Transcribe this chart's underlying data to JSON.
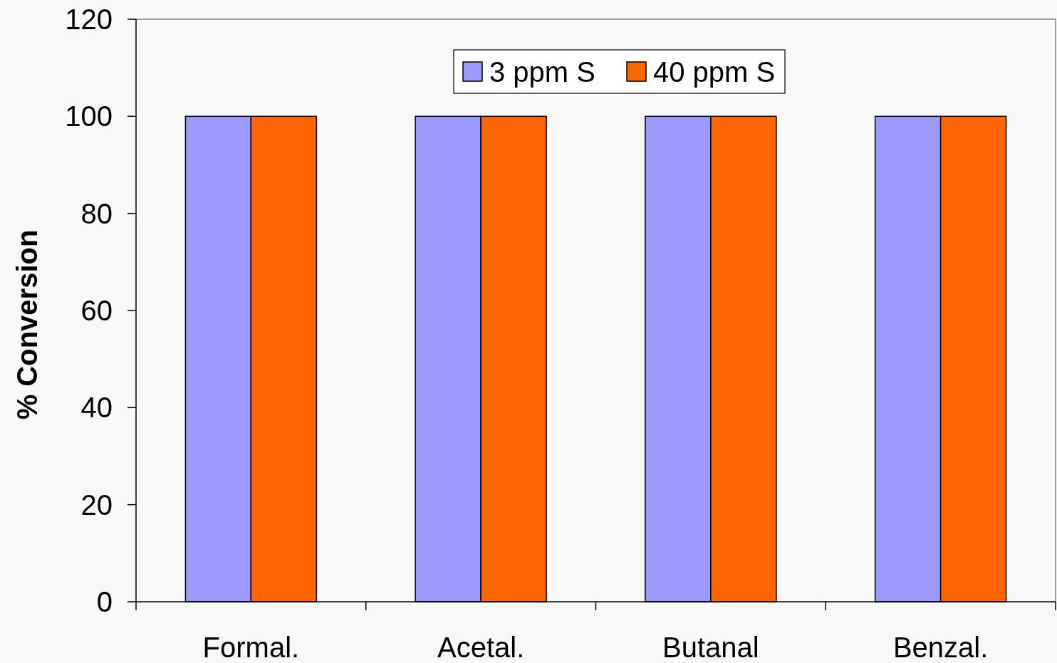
{
  "chart_data": {
    "type": "bar",
    "ylabel": "% Conversion",
    "categories": [
      "Formal.",
      "Acetal.",
      "Butanal",
      "Benzal."
    ],
    "series": [
      {
        "name": "3 ppm S",
        "color": "#9999ff",
        "values": [
          100,
          100,
          100,
          100
        ]
      },
      {
        "name": "40 ppm S",
        "color": "#ff6600",
        "values": [
          100,
          100,
          100,
          100
        ]
      }
    ],
    "ylim": [
      0,
      120
    ],
    "yticks": [
      0,
      20,
      40,
      60,
      80,
      100,
      120
    ],
    "grid": false,
    "legend": "top"
  }
}
